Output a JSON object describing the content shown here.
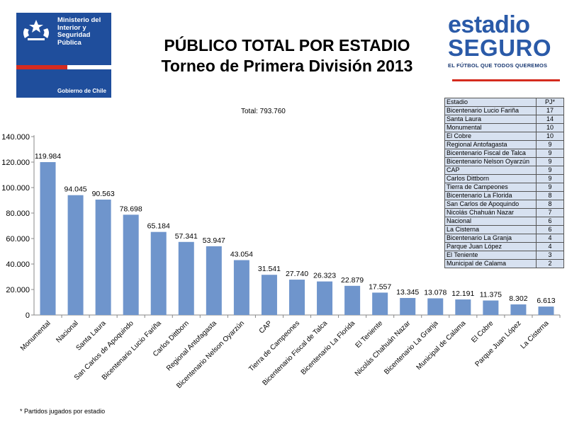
{
  "gov_logo": {
    "text": [
      "Ministerio del",
      "Interior y",
      "Seguridad",
      "Pública"
    ],
    "footer": "Gobierno de Chile"
  },
  "brand": {
    "line1": "estadio",
    "line2": "SEGURO",
    "tagline": "EL FÚTBOL QUE TODOS QUEREMOS"
  },
  "note": "* Partidos jugados por estadio",
  "games_table": {
    "header": [
      "Estadio",
      "PJ*"
    ],
    "rows": [
      [
        "Bicentenario Lucio Fariña",
        "17"
      ],
      [
        "Santa Laura",
        "14"
      ],
      [
        "Monumental",
        "10"
      ],
      [
        "El Cobre",
        "10"
      ],
      [
        "Regional Antofagasta",
        "9"
      ],
      [
        "Bicentenario Fiscal de Talca",
        "9"
      ],
      [
        "Bicentenario Nelson Oyarzún",
        "9"
      ],
      [
        "CAP",
        "9"
      ],
      [
        "Carlos Dittborn",
        "9"
      ],
      [
        "Tierra de Campeones",
        "9"
      ],
      [
        "Bicentenario La Florida",
        "8"
      ],
      [
        "San Carlos de Apoquindo",
        "8"
      ],
      [
        "Nicolás Chahuán Nazar",
        "7"
      ],
      [
        "Nacional",
        "6"
      ],
      [
        "La Cisterna",
        "6"
      ],
      [
        "Bicentenario La Granja",
        "4"
      ],
      [
        "Parque Juan López",
        "4"
      ],
      [
        "El Teniente",
        "3"
      ],
      [
        "Municipal de Calama",
        "2"
      ]
    ]
  },
  "chart_data": {
    "type": "bar",
    "title": [
      "PÚBLICO TOTAL POR ESTADIO",
      "Torneo de Primera División 2013"
    ],
    "subtitle": "Total: 793.760",
    "categories": [
      "Monumental",
      "Nacional",
      "Santa Laura",
      "San Carlos de Apoquindo",
      "Bicentenario Lucio Fariña",
      "Carlos Dittborn",
      "Regional Antofagasta",
      "Bicentenario Nelson Oyarzún",
      "CAP",
      "Tierra de Campeones",
      "Bicentenario Fiscal de Talca",
      "Bicentenario La Florida",
      "El Teniente",
      "Nicolás Chahuán Nazar",
      "Bicentenario La Granja",
      "Municipal de Calama",
      "El Cobre",
      "Parque Juan López",
      "La Cisterna"
    ],
    "values": [
      119984,
      94045,
      90563,
      78698,
      65184,
      57341,
      53947,
      43054,
      31541,
      27740,
      26323,
      22879,
      17557,
      13345,
      13078,
      12191,
      11375,
      8302,
      6613
    ],
    "value_labels": [
      "119.984",
      "94.045",
      "90.563",
      "78.698",
      "65.184",
      "57.341",
      "53.947",
      "43.054",
      "31.541",
      "27.740",
      "26.323",
      "22.879",
      "17.557",
      "13.345",
      "13.078",
      "12.191",
      "11.375",
      "8.302",
      "6.613"
    ],
    "yticks": [
      0,
      20000,
      40000,
      60000,
      80000,
      100000,
      120000,
      140000
    ],
    "ytick_labels": [
      "0",
      "20.000",
      "40.000",
      "60.000",
      "80.000",
      "100.000",
      "120.000",
      "140.000"
    ],
    "ylim": [
      0,
      140000
    ],
    "grid": false,
    "bar_color": "#6f95cc",
    "xlabel": "",
    "ylabel": ""
  }
}
